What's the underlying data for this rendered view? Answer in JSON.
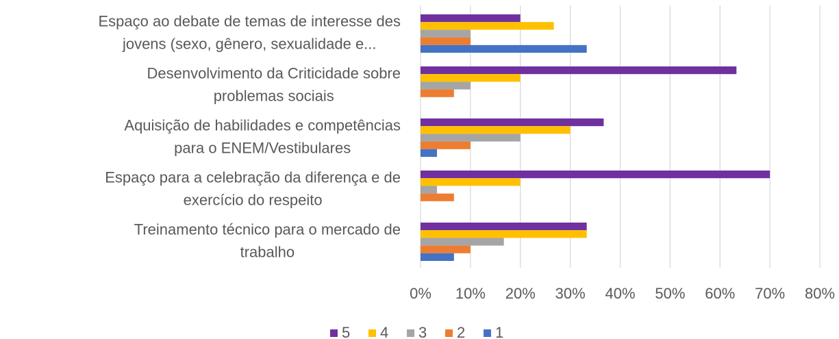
{
  "chart_data": {
    "type": "barh",
    "categories": [
      [
        "Espaço ao debate de temas de interesse des",
        "jovens (sexo, gênero, sexualidade e..."
      ],
      [
        "Desenvolvimento da Criticidade sobre",
        "problemas sociais"
      ],
      [
        "Aquisição de habilidades e competências",
        "para o ENEM/Vestibulares"
      ],
      [
        "Espaço para a celebração da diferença e de",
        "exercício do respeito"
      ],
      [
        "Treinamento técnico para o mercado de",
        "trabalho"
      ]
    ],
    "series": [
      {
        "name": "5",
        "color": "#7030a0",
        "values": [
          20,
          63.3,
          36.7,
          70,
          33.3
        ]
      },
      {
        "name": "4",
        "color": "#ffc000",
        "values": [
          26.7,
          20,
          30,
          20,
          33.3
        ]
      },
      {
        "name": "3",
        "color": "#a5a5a5",
        "values": [
          10,
          10,
          20,
          3.3,
          16.7
        ]
      },
      {
        "name": "2",
        "color": "#ed7d31",
        "values": [
          10,
          6.7,
          10,
          6.7,
          10
        ]
      },
      {
        "name": "1",
        "color": "#4472c4",
        "values": [
          33.3,
          0,
          3.3,
          0,
          6.7
        ]
      }
    ],
    "xlim": [
      0,
      80
    ],
    "xticks": [
      {
        "value": 0,
        "label": "0%"
      },
      {
        "value": 10,
        "label": "10%"
      },
      {
        "value": 20,
        "label": "20%"
      },
      {
        "value": 30,
        "label": "30%"
      },
      {
        "value": 40,
        "label": "40%"
      },
      {
        "value": 50,
        "label": "50%"
      },
      {
        "value": 60,
        "label": "60%"
      },
      {
        "value": 70,
        "label": "70%"
      },
      {
        "value": 80,
        "label": "80%"
      }
    ],
    "grid": true,
    "legend": "bottom"
  }
}
